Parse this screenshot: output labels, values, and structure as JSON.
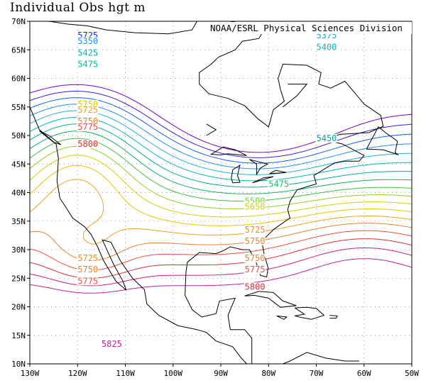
{
  "title": "Individual Obs hgt m",
  "credit": "NOAA/ESRL Physical Sciences Division",
  "axes": {
    "lat_labels": [
      "70N",
      "65N",
      "60N",
      "55N",
      "50N",
      "45N",
      "40N",
      "35N",
      "30N",
      "25N",
      "20N",
      "15N",
      "10N"
    ],
    "lon_labels": [
      "130W",
      "120W",
      "110W",
      "100W",
      "90W",
      "80W",
      "70W",
      "60W",
      "50W"
    ]
  },
  "map": {
    "projection": "equirectangular",
    "lon_range": [
      -130,
      -50
    ],
    "lat_range": [
      10,
      70
    ],
    "gridlines": "dotted",
    "coastlines": true
  },
  "contour_labels": [
    {
      "text": "5725",
      "lon": -120,
      "lat": 67,
      "color": "#1a26ff"
    },
    {
      "text": "5350",
      "lon": -120,
      "lat": 66,
      "color": "#1e90ff"
    },
    {
      "text": "5425",
      "lon": -120,
      "lat": 64,
      "color": "#00b4b4"
    },
    {
      "text": "5475",
      "lon": -120,
      "lat": 62,
      "color": "#00c090"
    },
    {
      "text": "5750",
      "lon": -120,
      "lat": 55,
      "color": "#e0c800"
    },
    {
      "text": "5725",
      "lon": -120,
      "lat": 54,
      "color": "#f0a020"
    },
    {
      "text": "5750",
      "lon": -120,
      "lat": 52,
      "color": "#ee8030"
    },
    {
      "text": "5775",
      "lon": -120,
      "lat": 51,
      "color": "#e85040"
    },
    {
      "text": "5800",
      "lon": -120,
      "lat": 48,
      "color": "#e03030"
    },
    {
      "text": "5375",
      "lon": -70,
      "lat": 67,
      "color": "#20a0e0"
    },
    {
      "text": "5400",
      "lon": -70,
      "lat": 65,
      "color": "#10b0c0"
    },
    {
      "text": "5450",
      "lon": -70,
      "lat": 49,
      "color": "#00a898"
    },
    {
      "text": "5475",
      "lon": -80,
      "lat": 41,
      "color": "#10c060"
    },
    {
      "text": "5500",
      "lon": -85,
      "lat": 38,
      "color": "#80d020"
    },
    {
      "text": "5650",
      "lon": -85,
      "lat": 37,
      "color": "#d0d000"
    },
    {
      "text": "5725",
      "lon": -85,
      "lat": 33,
      "color": "#f09020"
    },
    {
      "text": "5750",
      "lon": -85,
      "lat": 31,
      "color": "#ee8030"
    },
    {
      "text": "5725",
      "lon": -120,
      "lat": 28,
      "color": "#f09020"
    },
    {
      "text": "5750",
      "lon": -120,
      "lat": 26,
      "color": "#ee8030"
    },
    {
      "text": "5775",
      "lon": -120,
      "lat": 24,
      "color": "#e85040"
    },
    {
      "text": "5750",
      "lon": -85,
      "lat": 28,
      "color": "#ee8030"
    },
    {
      "text": "5775",
      "lon": -85,
      "lat": 26,
      "color": "#e85040"
    },
    {
      "text": "5800",
      "lon": -85,
      "lat": 23,
      "color": "#e03030"
    },
    {
      "text": "5825",
      "lon": -115,
      "lat": 13,
      "color": "#c020a0"
    }
  ],
  "contour_colors": [
    "#7a00c0",
    "#3020e0",
    "#1060ff",
    "#1e90ff",
    "#20b0e0",
    "#00b8b8",
    "#00b090",
    "#10b060",
    "#40c040",
    "#90d020",
    "#d0d000",
    "#f0c000",
    "#f0a020",
    "#ee8030",
    "#e85040",
    "#e03030",
    "#d0207a",
    "#c020a0"
  ]
}
